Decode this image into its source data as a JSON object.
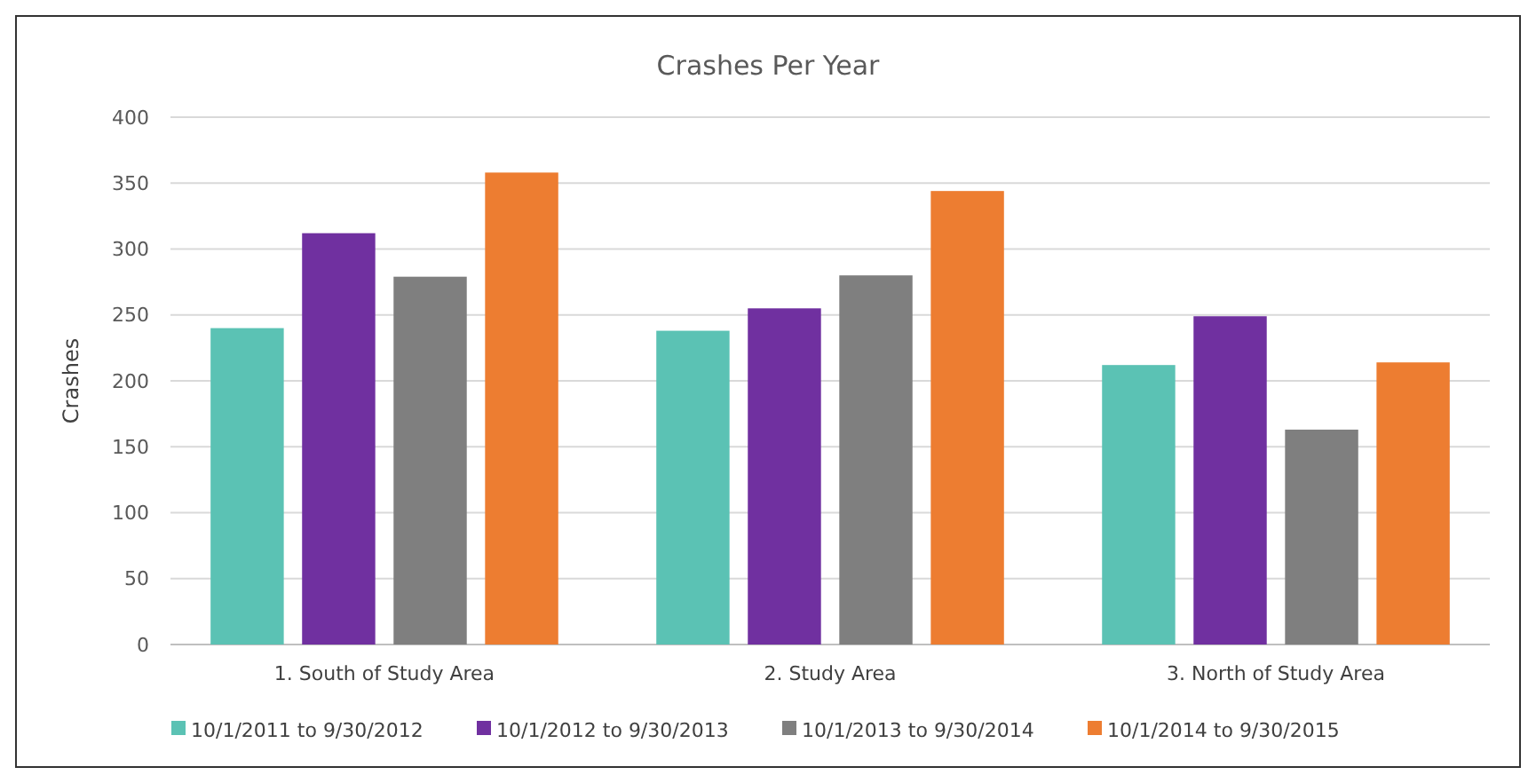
{
  "chart_data": {
    "type": "bar",
    "title": "Crashes Per Year",
    "ylabel": "Crashes",
    "categories": [
      "1. South of Study Area",
      "2. Study Area",
      "3. North of Study Area"
    ],
    "series": [
      {
        "name": "10/1/2011 to 9/30/2012",
        "color": "#5bc2b4",
        "values": [
          240,
          238,
          212
        ]
      },
      {
        "name": "10/1/2012 to 9/30/2013",
        "color": "#7030a0",
        "values": [
          312,
          255,
          249
        ]
      },
      {
        "name": "10/1/2013 to 9/30/2014",
        "color": "#7f7f7f",
        "values": [
          279,
          280,
          163
        ]
      },
      {
        "name": "10/1/2014 to 9/30/2015",
        "color": "#ed7d31",
        "values": [
          358,
          344,
          214
        ]
      }
    ],
    "ylim": [
      0,
      400
    ],
    "yticks": [
      0,
      50,
      100,
      150,
      200,
      250,
      300,
      350,
      400
    ],
    "grid": "y",
    "legend": "bottom"
  }
}
